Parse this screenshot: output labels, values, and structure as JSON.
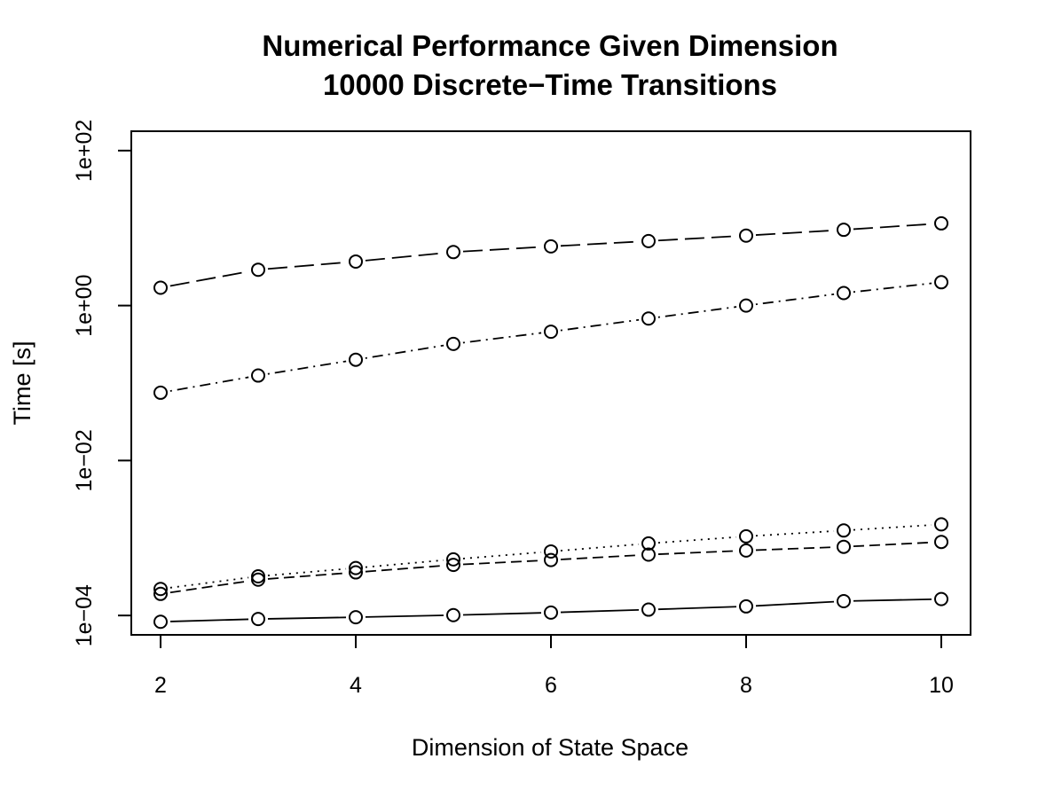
{
  "chart_data": {
    "type": "line",
    "title_lines": [
      "Numerical Performance Given Dimension",
      "10000 Discrete−Time Transitions"
    ],
    "xlabel": "Dimension of State Space",
    "ylabel": "Time [s]",
    "x_ticks": [
      "2",
      "4",
      "6",
      "8",
      "10"
    ],
    "y_ticks": [
      "1e−04",
      "1e−02",
      "1e+00",
      "1e+02"
    ],
    "y_scale": "log",
    "xlim": [
      1.7,
      10.3
    ],
    "ylim_log10": [
      -4.25,
      2.25
    ],
    "x": [
      2,
      3,
      4,
      5,
      6,
      7,
      8,
      9,
      10
    ],
    "series": [
      {
        "line_style": "longdash",
        "values": [
          1.7,
          2.9,
          3.7,
          4.9,
          5.8,
          6.8,
          8.0,
          9.5,
          11.5
        ]
      },
      {
        "line_style": "dotdash",
        "values": [
          0.075,
          0.125,
          0.2,
          0.32,
          0.46,
          0.68,
          1.0,
          1.45,
          2.0
        ]
      },
      {
        "line_style": "dotted",
        "values": [
          0.00022,
          0.00032,
          0.00041,
          0.00053,
          0.00067,
          0.00085,
          0.00105,
          0.00125,
          0.0015
        ]
      },
      {
        "line_style": "dashed",
        "values": [
          0.00019,
          0.00029,
          0.00036,
          0.00045,
          0.00052,
          0.00061,
          0.00069,
          0.00077,
          0.00089
        ]
      },
      {
        "line_style": "solid",
        "values": [
          8.3e-05,
          9e-05,
          9.5e-05,
          0.000101,
          0.000109,
          0.000119,
          0.000131,
          0.000153,
          0.000163
        ]
      }
    ],
    "grid": false,
    "legend": "none"
  }
}
